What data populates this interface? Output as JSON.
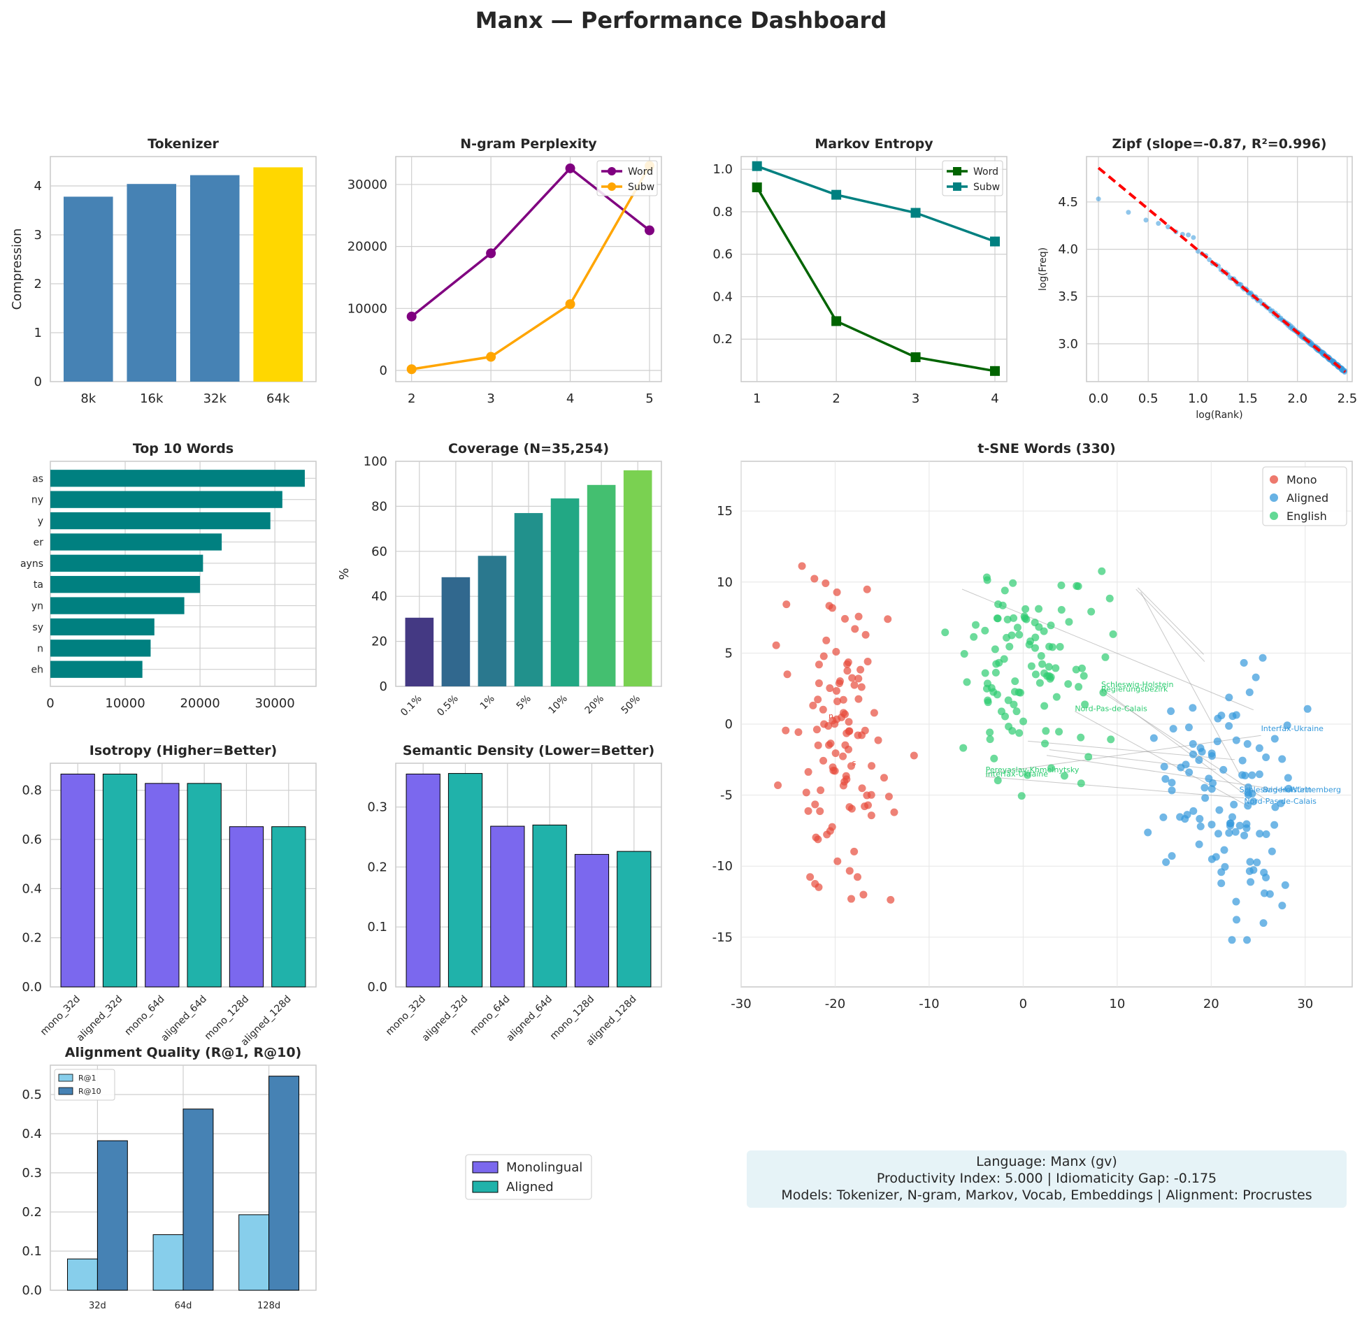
{
  "page_title": "Manx — Performance Dashboard",
  "colors": {
    "steelblue": "#4682b4",
    "gold": "#ffd700",
    "purple": "#800080",
    "orange": "#ffa500",
    "darkgreen": "#006400",
    "teal": "#008080",
    "red": "#ff0000",
    "mono_bar": "#7b68ee",
    "aligned_bar": "#20b2aa",
    "skyblue": "#87ceeb",
    "tsne_mono": "#e74c3c",
    "tsne_aligned": "#3498db",
    "tsne_english": "#2ecc71",
    "info_box": "#e6f3f7"
  },
  "chart_data": [
    {
      "id": "tokenizer",
      "type": "bar",
      "title": "Tokenizer",
      "categories": [
        "8k",
        "16k",
        "32k",
        "64k"
      ],
      "values": [
        3.78,
        4.04,
        4.22,
        4.38
      ],
      "highlight_index": 3,
      "ylabel": "Compression",
      "ylim": [
        0,
        4.6
      ],
      "yticks": [
        0,
        1,
        2,
        3,
        4
      ]
    },
    {
      "id": "ngram",
      "type": "line",
      "title": "N-gram Perplexity",
      "x": [
        2,
        3,
        4,
        5
      ],
      "ylim": [
        -1800,
        34500
      ],
      "yticks": [
        0,
        10000,
        20000,
        30000
      ],
      "series": [
        {
          "name": "Word",
          "values": [
            8700,
            18900,
            32600,
            22600
          ]
        },
        {
          "name": "Subw",
          "values": [
            200,
            2200,
            10700,
            33000
          ]
        }
      ],
      "legend": "top-right"
    },
    {
      "id": "markov",
      "type": "line",
      "title": "Markov Entropy",
      "x": [
        1,
        2,
        3,
        4
      ],
      "ylim": [
        0,
        1.06
      ],
      "yticks": [
        0.2,
        0.4,
        0.6,
        0.8,
        1.0
      ],
      "series": [
        {
          "name": "Word",
          "values": [
            0.915,
            0.285,
            0.115,
            0.05
          ]
        },
        {
          "name": "Subw",
          "values": [
            1.015,
            0.88,
            0.795,
            0.66
          ]
        }
      ],
      "legend": "top-right"
    },
    {
      "id": "zipf",
      "type": "scatter",
      "title": "Zipf (slope=-0.87, R²=0.996)",
      "xlabel": "log(Rank)",
      "ylabel": "log(Freq)",
      "xlim": [
        -0.12,
        2.55
      ],
      "ylim": [
        2.6,
        4.98
      ],
      "xticks": [
        0.0,
        0.5,
        1.0,
        1.5,
        2.0,
        2.5
      ],
      "yticks": [
        3.0,
        3.5,
        4.0,
        4.5
      ],
      "fit": {
        "slope": -0.87,
        "intercept": 4.86
      }
    },
    {
      "id": "top10",
      "type": "bar",
      "orientation": "horizontal",
      "title": "Top 10 Words",
      "categories": [
        "as",
        "ny",
        "y",
        "er",
        "ayns",
        "ta",
        "yn",
        "sy",
        "n",
        "eh"
      ],
      "values": [
        34000,
        31000,
        29400,
        22900,
        20400,
        20000,
        17900,
        13900,
        13400,
        12300
      ],
      "xlim": [
        0,
        35500
      ],
      "xticks": [
        0,
        10000,
        20000,
        30000
      ]
    },
    {
      "id": "coverage",
      "type": "bar",
      "title": "Coverage (N=35,254)",
      "categories": [
        "0.1%",
        "0.5%",
        "1%",
        "5%",
        "10%",
        "20%",
        "50%"
      ],
      "values": [
        30.5,
        48.5,
        58.0,
        77.0,
        83.5,
        89.5,
        96.0
      ],
      "bar_colors": [
        "#443983",
        "#31688e",
        "#2a788e",
        "#21918c",
        "#22a884",
        "#44bf70",
        "#7ad151"
      ],
      "ylabel": "%",
      "ylim": [
        0,
        100
      ],
      "yticks": [
        0,
        20,
        40,
        60,
        80,
        100
      ]
    },
    {
      "id": "tsne",
      "type": "scatter",
      "title": "t-SNE Words (330)",
      "xlim": [
        -30,
        35
      ],
      "ylim": [
        -18.5,
        18.5
      ],
      "xticks": [
        -30,
        -20,
        -10,
        0,
        10,
        20,
        30
      ],
      "yticks": [
        -15,
        -10,
        -5,
        0,
        5,
        10,
        15
      ],
      "series": [
        {
          "name": "Mono"
        },
        {
          "name": "Aligned"
        },
        {
          "name": "English"
        }
      ],
      "legend": "top-right",
      "labels": [
        {
          "text": "Schleswig-Holstein",
          "x": 8.3,
          "y": 2.6,
          "color": "#2ecc71"
        },
        {
          "text": "Regierungsbezirk",
          "x": 8.3,
          "y": 2.3,
          "color": "#2ecc71"
        },
        {
          "text": "Nord-Pas-de-Calais",
          "x": 5.5,
          "y": 0.9,
          "color": "#2ecc71"
        },
        {
          "text": "Pereyaslav-Khmelnytsky",
          "x": -4.0,
          "y": -3.4,
          "color": "#2ecc71"
        },
        {
          "text": "Interfax-Ukraine",
          "x": -4.0,
          "y": -3.7,
          "color": "#2ecc71"
        },
        {
          "text": "Interfax-Ukraine",
          "x": 25.3,
          "y": -0.5,
          "color": "#3498db"
        },
        {
          "text": "Schleswig-Holstein",
          "x": 23.0,
          "y": -4.8,
          "color": "#3498db"
        },
        {
          "text": "Baden-Württemberg",
          "x": 25.5,
          "y": -4.8,
          "color": "#3498db"
        },
        {
          "text": "Nord-Pas-de-Calais",
          "x": 23.5,
          "y": -5.6,
          "color": "#3498db"
        },
        {
          "text": "n",
          "x": -20.7,
          "y": 0.4,
          "color": "#e74c3c"
        },
        {
          "text": "s",
          "x": -18.2,
          "y": -2.9,
          "color": "#e74c3c"
        }
      ]
    },
    {
      "id": "isotropy",
      "type": "bar",
      "title": "Isotropy (Higher=Better)",
      "categories": [
        "mono_32d",
        "aligned_32d",
        "mono_64d",
        "aligned_64d",
        "mono_128d",
        "aligned_128d"
      ],
      "values": [
        0.866,
        0.866,
        0.828,
        0.828,
        0.652,
        0.652
      ],
      "ylim": [
        0,
        0.91
      ],
      "yticks": [
        0.0,
        0.2,
        0.4,
        0.6,
        0.8
      ]
    },
    {
      "id": "density",
      "type": "bar",
      "title": "Semantic Density (Lower=Better)",
      "categories": [
        "mono_32d",
        "aligned_32d",
        "mono_64d",
        "aligned_64d",
        "mono_128d",
        "aligned_128d"
      ],
      "values": [
        0.355,
        0.356,
        0.268,
        0.27,
        0.221,
        0.226
      ],
      "ylim": [
        0,
        0.373
      ],
      "yticks": [
        0.0,
        0.1,
        0.2,
        0.3
      ]
    },
    {
      "id": "alignment",
      "type": "bar",
      "title": "Alignment Quality (R@1, R@10)",
      "categories": [
        "32d",
        "64d",
        "128d"
      ],
      "series": [
        {
          "name": "R@1",
          "values": [
            0.08,
            0.142,
            0.193
          ]
        },
        {
          "name": "R@10",
          "values": [
            0.382,
            0.463,
            0.547
          ]
        }
      ],
      "ylim": [
        0,
        0.575
      ],
      "yticks": [
        0.0,
        0.1,
        0.2,
        0.3,
        0.4,
        0.5
      ],
      "legend": "top-left"
    }
  ],
  "shared_legend": {
    "items": [
      "Monolingual",
      "Aligned"
    ]
  },
  "info_box": {
    "line1": "Language: Manx (gv)",
    "line2": "Productivity Index: 5.000  |  Idiomaticity Gap: -0.175",
    "line3": "Models: Tokenizer, N-gram, Markov, Vocab, Embeddings  |  Alignment: Procrustes"
  }
}
